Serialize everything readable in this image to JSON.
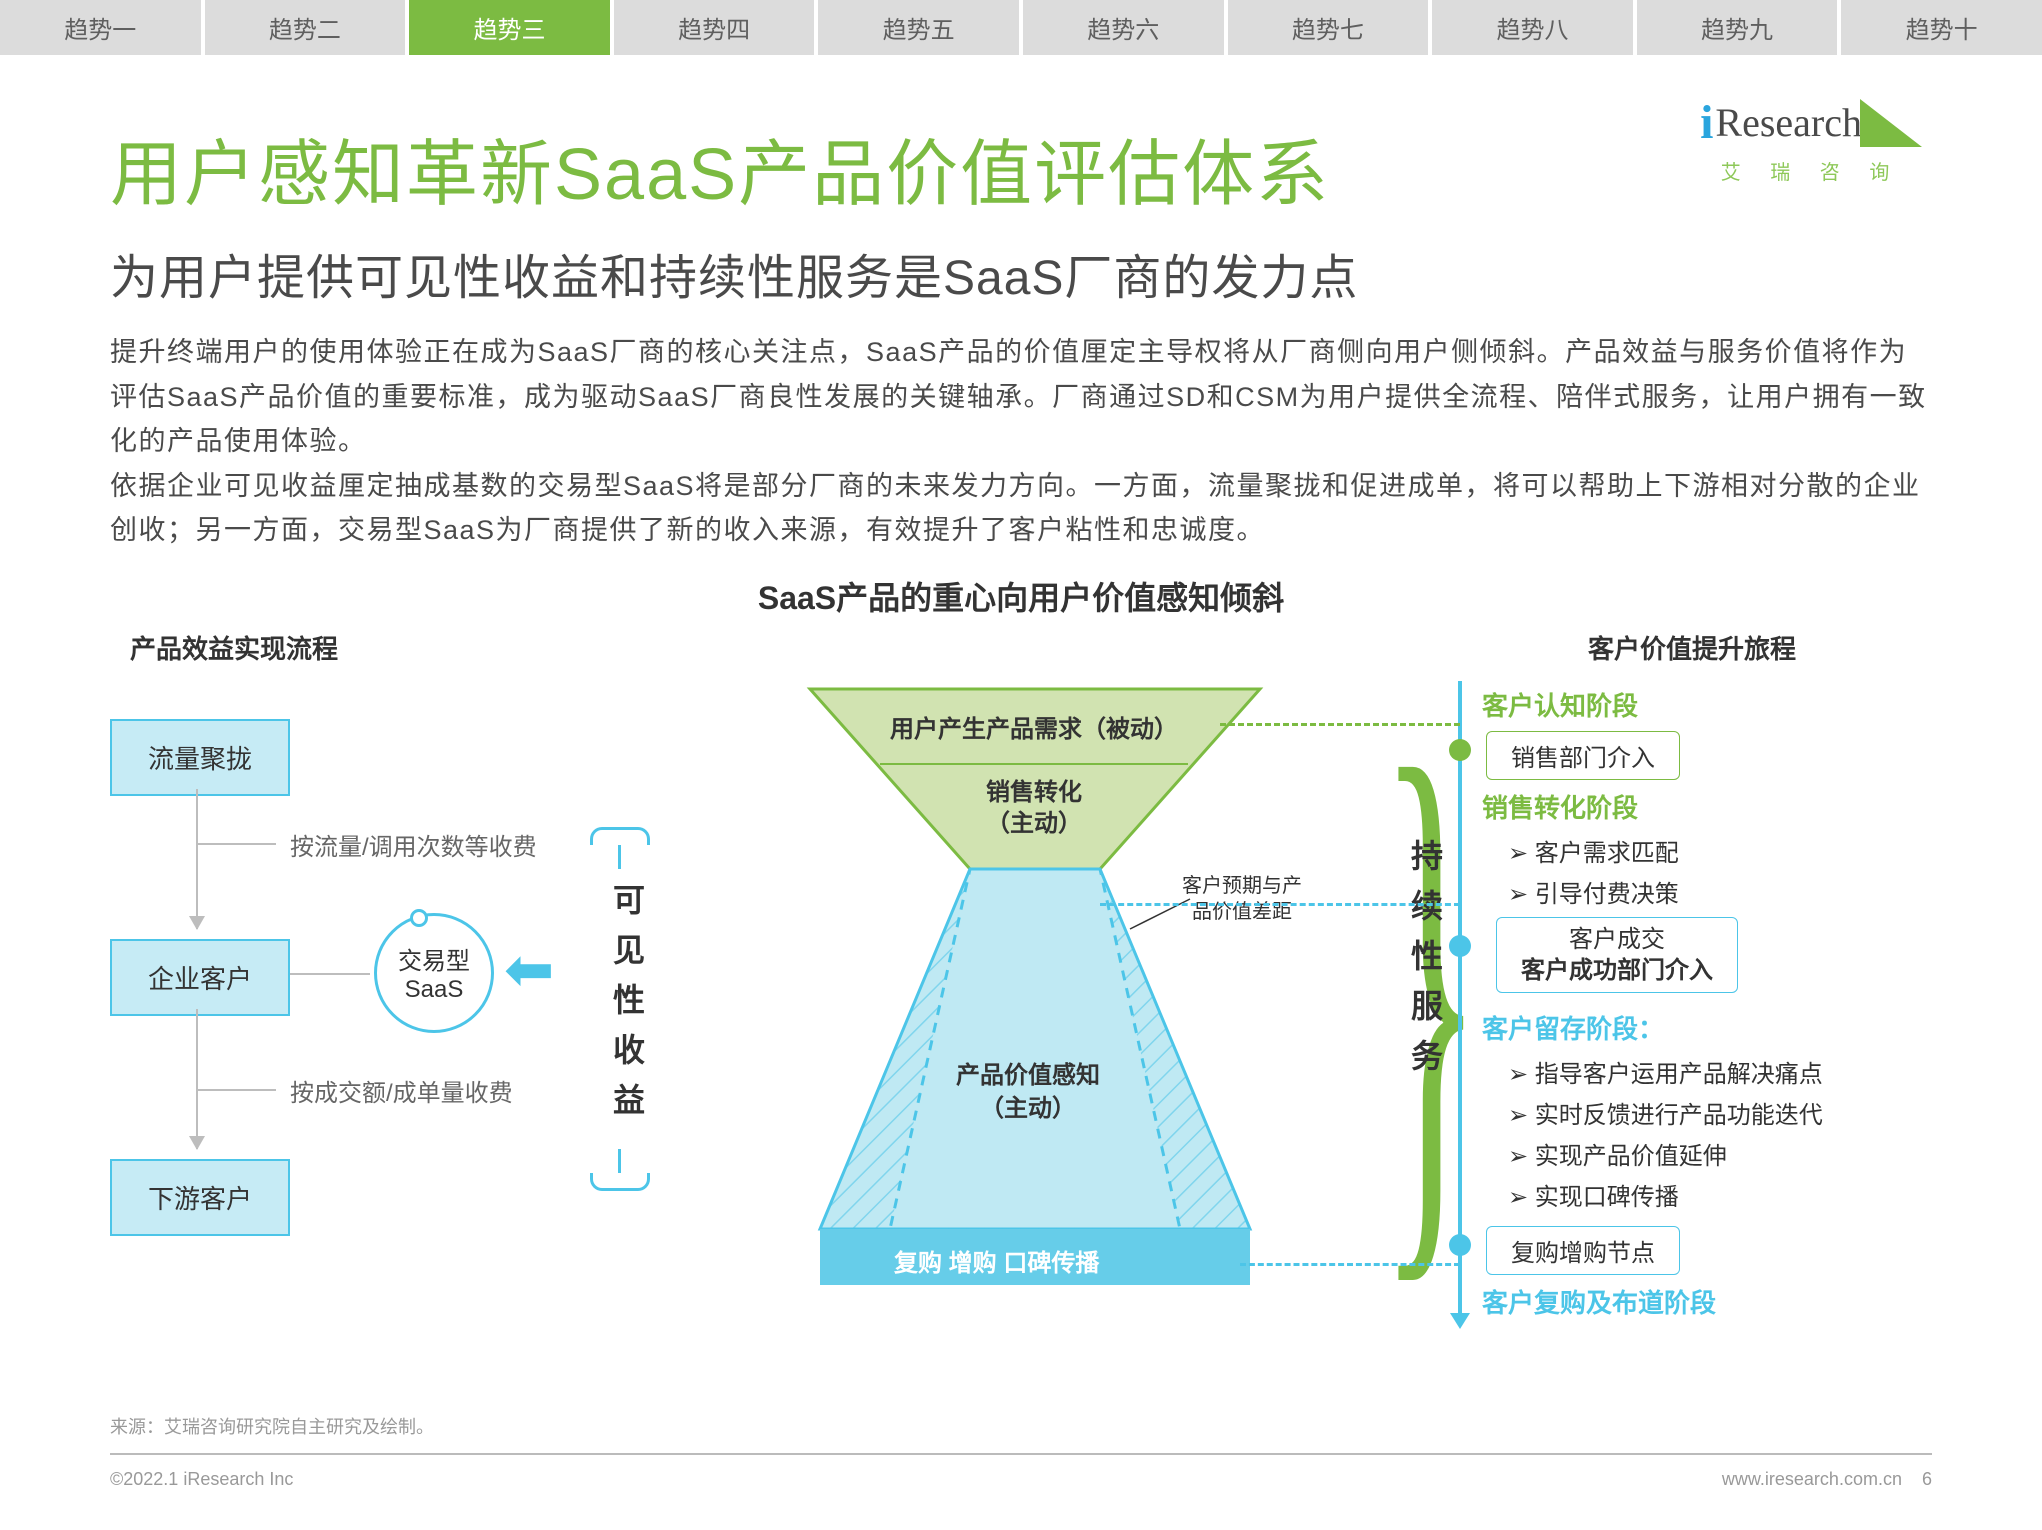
{
  "colors": {
    "green": "#7cbb42",
    "cyan": "#4cc5e8",
    "lightCyan": "#c6ebf5",
    "grey": "#bdbdbd",
    "textDark": "#4a4a4a",
    "funnelGreenFill": "#d1e3b1",
    "funnelCyanFill": "#bfe9f3"
  },
  "tabs": [
    "趋势一",
    "趋势二",
    "趋势三",
    "趋势四",
    "趋势五",
    "趋势六",
    "趋势七",
    "趋势八",
    "趋势九",
    "趋势十"
  ],
  "activeTab": 2,
  "logo": {
    "i": "i",
    "research": "Research",
    "sub": "艾 瑞 咨 询"
  },
  "title": "用户感知革新SaaS产品价值评估体系",
  "subtitle": "为用户提供可见性收益和持续性服务是SaaS厂商的发力点",
  "body": "提升终端用户的使用体验正在成为SaaS厂商的核心关注点，SaaS产品的价值厘定主导权将从厂商侧向用户侧倾斜。产品效益与服务价值将作为评估SaaS产品价值的重要标准，成为驱动SaaS厂商良性发展的关键轴承。厂商通过SD和CSM为用户提供全流程、陪伴式服务，让用户拥有一致化的产品使用体验。\n依据企业可见收益厘定抽成基数的交易型SaaS将是部分厂商的未来发力方向。一方面，流量聚拢和促进成单，将可以帮助上下游相对分散的企业创收；另一方面，交易型SaaS为厂商提供了新的收入来源，有效提升了客户粘性和忠诚度。",
  "diagramTitle": "SaaS产品的重心向用户价值感知倾斜",
  "leftTitle": "产品效益实现流程",
  "leftBoxes": [
    "流量聚拢",
    "企业客户",
    "下游客户"
  ],
  "leftLabels": [
    "按流量/调用次数等收费",
    "按成交额/成单量收费"
  ],
  "saasCircle": "交易型\nSaaS",
  "midLabel": "可见性收益",
  "funnel": {
    "top": "用户产生产品需求（被动）",
    "mid": "销售转化\n（主动）",
    "note": "客户预期与产\n品价值差距",
    "lower": "产品价值感知\n（主动）",
    "bottom": "复购  增购  口碑传播"
  },
  "braceLabel": "持续性服务",
  "rightTitle": "客户价值提升旅程",
  "right": {
    "stage1": "客户认知阶段",
    "pill1": "销售部门介入",
    "stage2": "销售转化阶段",
    "items2": [
      "客户需求匹配",
      "引导付费决策"
    ],
    "pill2a": "客户成交",
    "pill2b": "客户成功部门介入",
    "stage3": "客户留存阶段：",
    "items3": [
      "指导客户运用产品解决痛点",
      "实时反馈进行产品功能迭代",
      "实现产品价值延伸",
      "实现口碑传播"
    ],
    "pill3": "复购增购节点",
    "stage4": "客户复购及布道阶段"
  },
  "source": "来源：艾瑞咨询研究院自主研究及绘制。",
  "copyright": "©2022.1 iResearch Inc",
  "url": "www.iresearch.com.cn",
  "page": "6"
}
